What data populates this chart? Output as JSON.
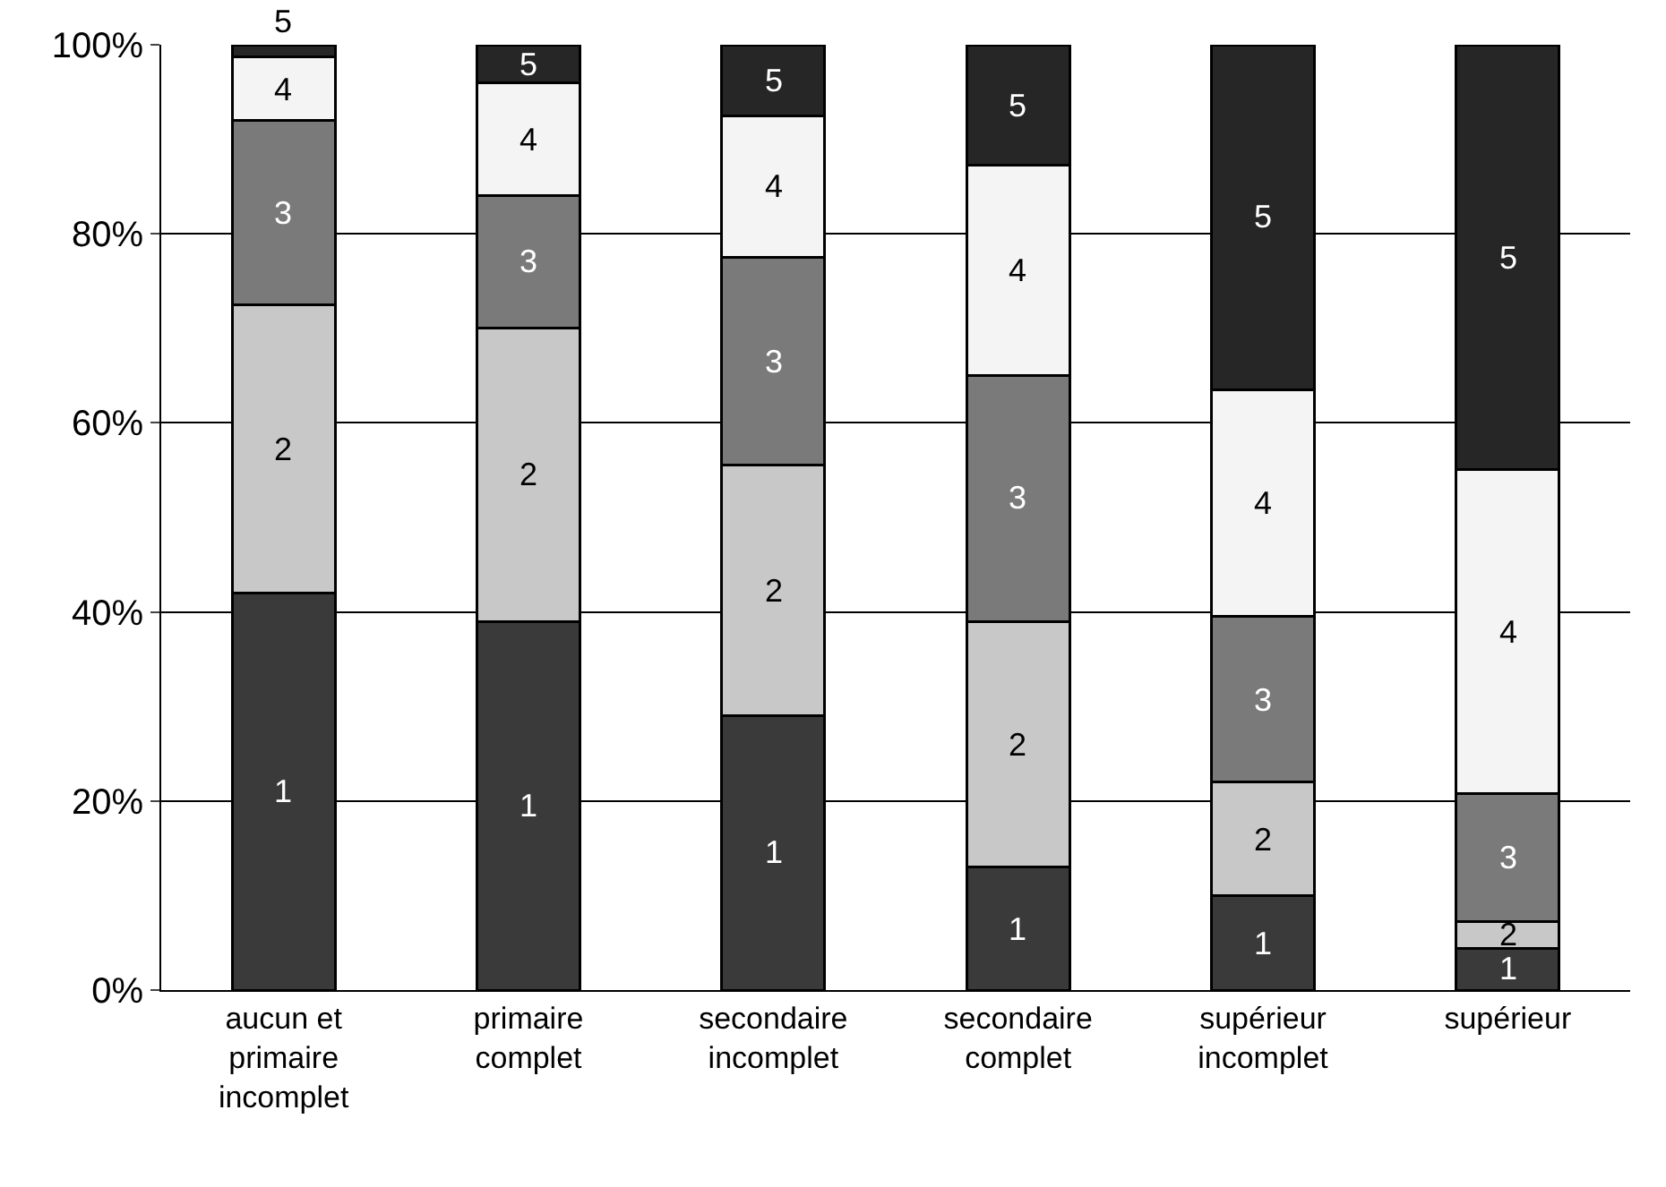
{
  "chart_data": {
    "type": "bar",
    "stacked": true,
    "categories": [
      "aucun et\nprimaire\nincomplet",
      "primaire\ncomplet",
      "secondaire\nincomplet",
      "secondaire\ncomplet",
      "supérieur\nincomplet",
      "supérieur"
    ],
    "series": [
      {
        "name": "1",
        "color": "#3a3a3a",
        "values": [
          42,
          39,
          29,
          13,
          10,
          4.4
        ]
      },
      {
        "name": "2",
        "color": "#c8c8c8",
        "values": [
          30.5,
          31,
          26.5,
          26,
          12,
          2.8
        ]
      },
      {
        "name": "3",
        "color": "#7a7a7a",
        "values": [
          19.5,
          14,
          22,
          26,
          17.5,
          13.6
        ]
      },
      {
        "name": "4",
        "color": "#f4f4f4",
        "values": [
          6.7,
          12,
          15,
          22.3,
          24,
          34.3
        ]
      },
      {
        "name": "5",
        "color": "#262626",
        "values": [
          1.3,
          4,
          7.5,
          12.7,
          36.5,
          44.9
        ]
      }
    ],
    "ylim": [
      0,
      100
    ],
    "yticks": [
      {
        "value": 0,
        "label": "0%"
      },
      {
        "value": 20,
        "label": "20%"
      },
      {
        "value": 40,
        "label": "40%"
      },
      {
        "value": 60,
        "label": "60%"
      },
      {
        "value": 80,
        "label": "80%"
      },
      {
        "value": 100,
        "label": "100%"
      }
    ],
    "grid": "y",
    "legend": false
  }
}
